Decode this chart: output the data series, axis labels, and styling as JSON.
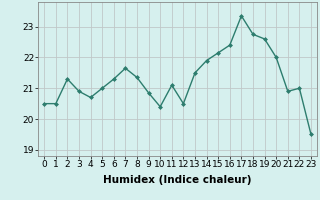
{
  "x": [
    0,
    1,
    2,
    3,
    4,
    5,
    6,
    7,
    8,
    9,
    10,
    11,
    12,
    13,
    14,
    15,
    16,
    17,
    18,
    19,
    20,
    21,
    22,
    23
  ],
  "y": [
    20.5,
    20.5,
    21.3,
    20.9,
    20.7,
    21.0,
    21.3,
    21.65,
    21.35,
    20.85,
    20.4,
    21.1,
    20.5,
    21.5,
    21.9,
    22.15,
    22.4,
    23.35,
    22.75,
    22.6,
    22.0,
    20.9,
    21.0,
    19.5
  ],
  "line_color": "#2d7d6e",
  "marker": "D",
  "marker_size": 2,
  "bg_color": "#d6f0ee",
  "grid_color": "#c0c8c8",
  "xlabel": "Humidex (Indice chaleur)",
  "ylim": [
    18.8,
    23.8
  ],
  "xlim": [
    -0.5,
    23.5
  ],
  "yticks": [
    19,
    20,
    21,
    22,
    23
  ],
  "xticks": [
    0,
    1,
    2,
    3,
    4,
    5,
    6,
    7,
    8,
    9,
    10,
    11,
    12,
    13,
    14,
    15,
    16,
    17,
    18,
    19,
    20,
    21,
    22,
    23
  ],
  "tick_fontsize": 6.5,
  "xlabel_fontsize": 7.5,
  "line_width": 1.0
}
